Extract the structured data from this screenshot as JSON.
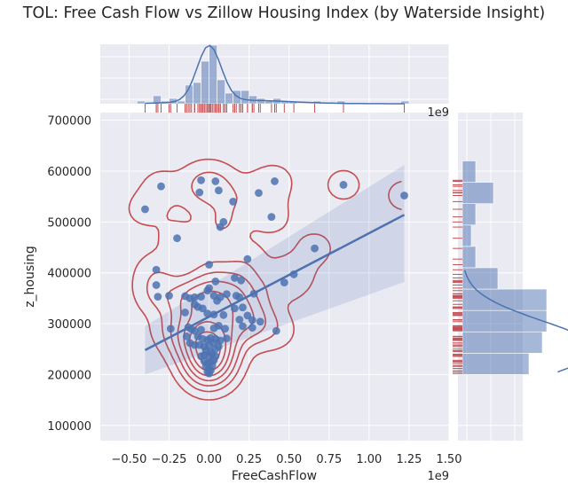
{
  "chart_data": {
    "type": "scatter",
    "title": "TOL: Free Cash Flow vs Zillow Housing Index (by Waterside Insight)",
    "xlabel": "FreeCashFlow",
    "ylabel": "z_housing",
    "x_offset_label": "1e9",
    "y_offset_label": "1e9",
    "xlim": [
      -0.68,
      1.5
    ],
    "ylim": [
      70000,
      715000
    ],
    "x_ticks": [
      -0.5,
      -0.25,
      0.0,
      0.25,
      0.5,
      0.75,
      1.0,
      1.25,
      1.5
    ],
    "x_tick_labels": [
      "−0.50",
      "−0.25",
      "0.00",
      "0.25",
      "0.50",
      "0.75",
      "1.00",
      "1.25",
      "1.50"
    ],
    "y_ticks": [
      100000,
      200000,
      300000,
      400000,
      500000,
      600000,
      700000
    ],
    "y_tick_labels": [
      "100000",
      "200000",
      "300000",
      "400000",
      "500000",
      "600000",
      "700000"
    ],
    "grid": true,
    "regression": {
      "x": [
        -0.4,
        1.22
      ],
      "y": [
        248000,
        514000
      ],
      "ci_start": [
        200000,
        295000
      ],
      "ci_end": [
        382000,
        612000
      ]
    },
    "series": [
      {
        "points": [
          [
            -0.4,
            525000
          ],
          [
            -0.3,
            570000
          ],
          [
            -0.05,
            582000
          ],
          [
            0.04,
            580000
          ],
          [
            -0.06,
            558000
          ],
          [
            0.06,
            562000
          ],
          [
            0.15,
            540000
          ],
          [
            0.31,
            557000
          ],
          [
            0.41,
            580000
          ],
          [
            0.39,
            510000
          ],
          [
            0.84,
            573000
          ],
          [
            1.22,
            552000
          ],
          [
            0.09,
            500000
          ],
          [
            0.07,
            490000
          ],
          [
            -0.2,
            468000
          ],
          [
            0.66,
            448000
          ],
          [
            0.24,
            427000
          ],
          [
            0.0,
            416000
          ],
          [
            -0.33,
            406000
          ],
          [
            0.53,
            397000
          ],
          [
            0.47,
            381000
          ],
          [
            0.16,
            390000
          ],
          [
            0.2,
            385000
          ],
          [
            0.04,
            383000
          ],
          [
            -0.33,
            376000
          ],
          [
            0.0,
            370000
          ],
          [
            -0.01,
            365000
          ],
          [
            0.11,
            358000
          ],
          [
            0.28,
            359000
          ],
          [
            -0.25,
            355000
          ],
          [
            -0.32,
            353000
          ],
          [
            -0.15,
            354000
          ],
          [
            -0.12,
            350000
          ],
          [
            -0.09,
            352000
          ],
          [
            -0.05,
            353000
          ],
          [
            0.03,
            355000
          ],
          [
            0.07,
            352000
          ],
          [
            0.17,
            355000
          ],
          [
            0.19,
            352000
          ],
          [
            0.05,
            345000
          ],
          [
            -0.09,
            338000
          ],
          [
            -0.07,
            333000
          ],
          [
            -0.04,
            330000
          ],
          [
            0.16,
            330000
          ],
          [
            0.21,
            332000
          ],
          [
            -0.15,
            322000
          ],
          [
            0.03,
            318000
          ],
          [
            -0.01,
            320000
          ],
          [
            0.09,
            317000
          ],
          [
            0.24,
            316000
          ],
          [
            0.19,
            308000
          ],
          [
            0.27,
            307000
          ],
          [
            0.32,
            304000
          ],
          [
            -0.24,
            290000
          ],
          [
            -0.13,
            293000
          ],
          [
            -0.11,
            289000
          ],
          [
            -0.09,
            286000
          ],
          [
            -0.05,
            288000
          ],
          [
            0.03,
            291000
          ],
          [
            0.06,
            296000
          ],
          [
            0.1,
            290000
          ],
          [
            0.21,
            295000
          ],
          [
            0.27,
            292000
          ],
          [
            0.42,
            286000
          ],
          [
            -0.14,
            275000
          ],
          [
            -0.07,
            275000
          ],
          [
            -0.04,
            270000
          ],
          [
            -0.01,
            268000
          ],
          [
            0.01,
            272000
          ],
          [
            0.04,
            270000
          ],
          [
            0.07,
            267000
          ],
          [
            0.11,
            271000
          ],
          [
            -0.12,
            262000
          ],
          [
            -0.09,
            258000
          ],
          [
            -0.06,
            258000
          ],
          [
            -0.03,
            255000
          ],
          [
            0.0,
            258000
          ],
          [
            0.03,
            262000
          ],
          [
            0.06,
            255000
          ],
          [
            -0.02,
            247000
          ],
          [
            0.01,
            245000
          ],
          [
            0.04,
            250000
          ],
          [
            -0.05,
            236000
          ],
          [
            -0.03,
            238000
          ],
          [
            0.0,
            236000
          ],
          [
            0.02,
            240000
          ],
          [
            0.04,
            236000
          ],
          [
            -0.03,
            226000
          ],
          [
            -0.01,
            222000
          ],
          [
            0.01,
            225000
          ],
          [
            0.03,
            228000
          ],
          [
            -0.02,
            216000
          ],
          [
            0.0,
            212000
          ],
          [
            0.01,
            208000
          ],
          [
            -0.01,
            205000
          ],
          [
            0.0,
            202000
          ],
          [
            0.02,
            218000
          ]
        ]
      }
    ]
  }
}
